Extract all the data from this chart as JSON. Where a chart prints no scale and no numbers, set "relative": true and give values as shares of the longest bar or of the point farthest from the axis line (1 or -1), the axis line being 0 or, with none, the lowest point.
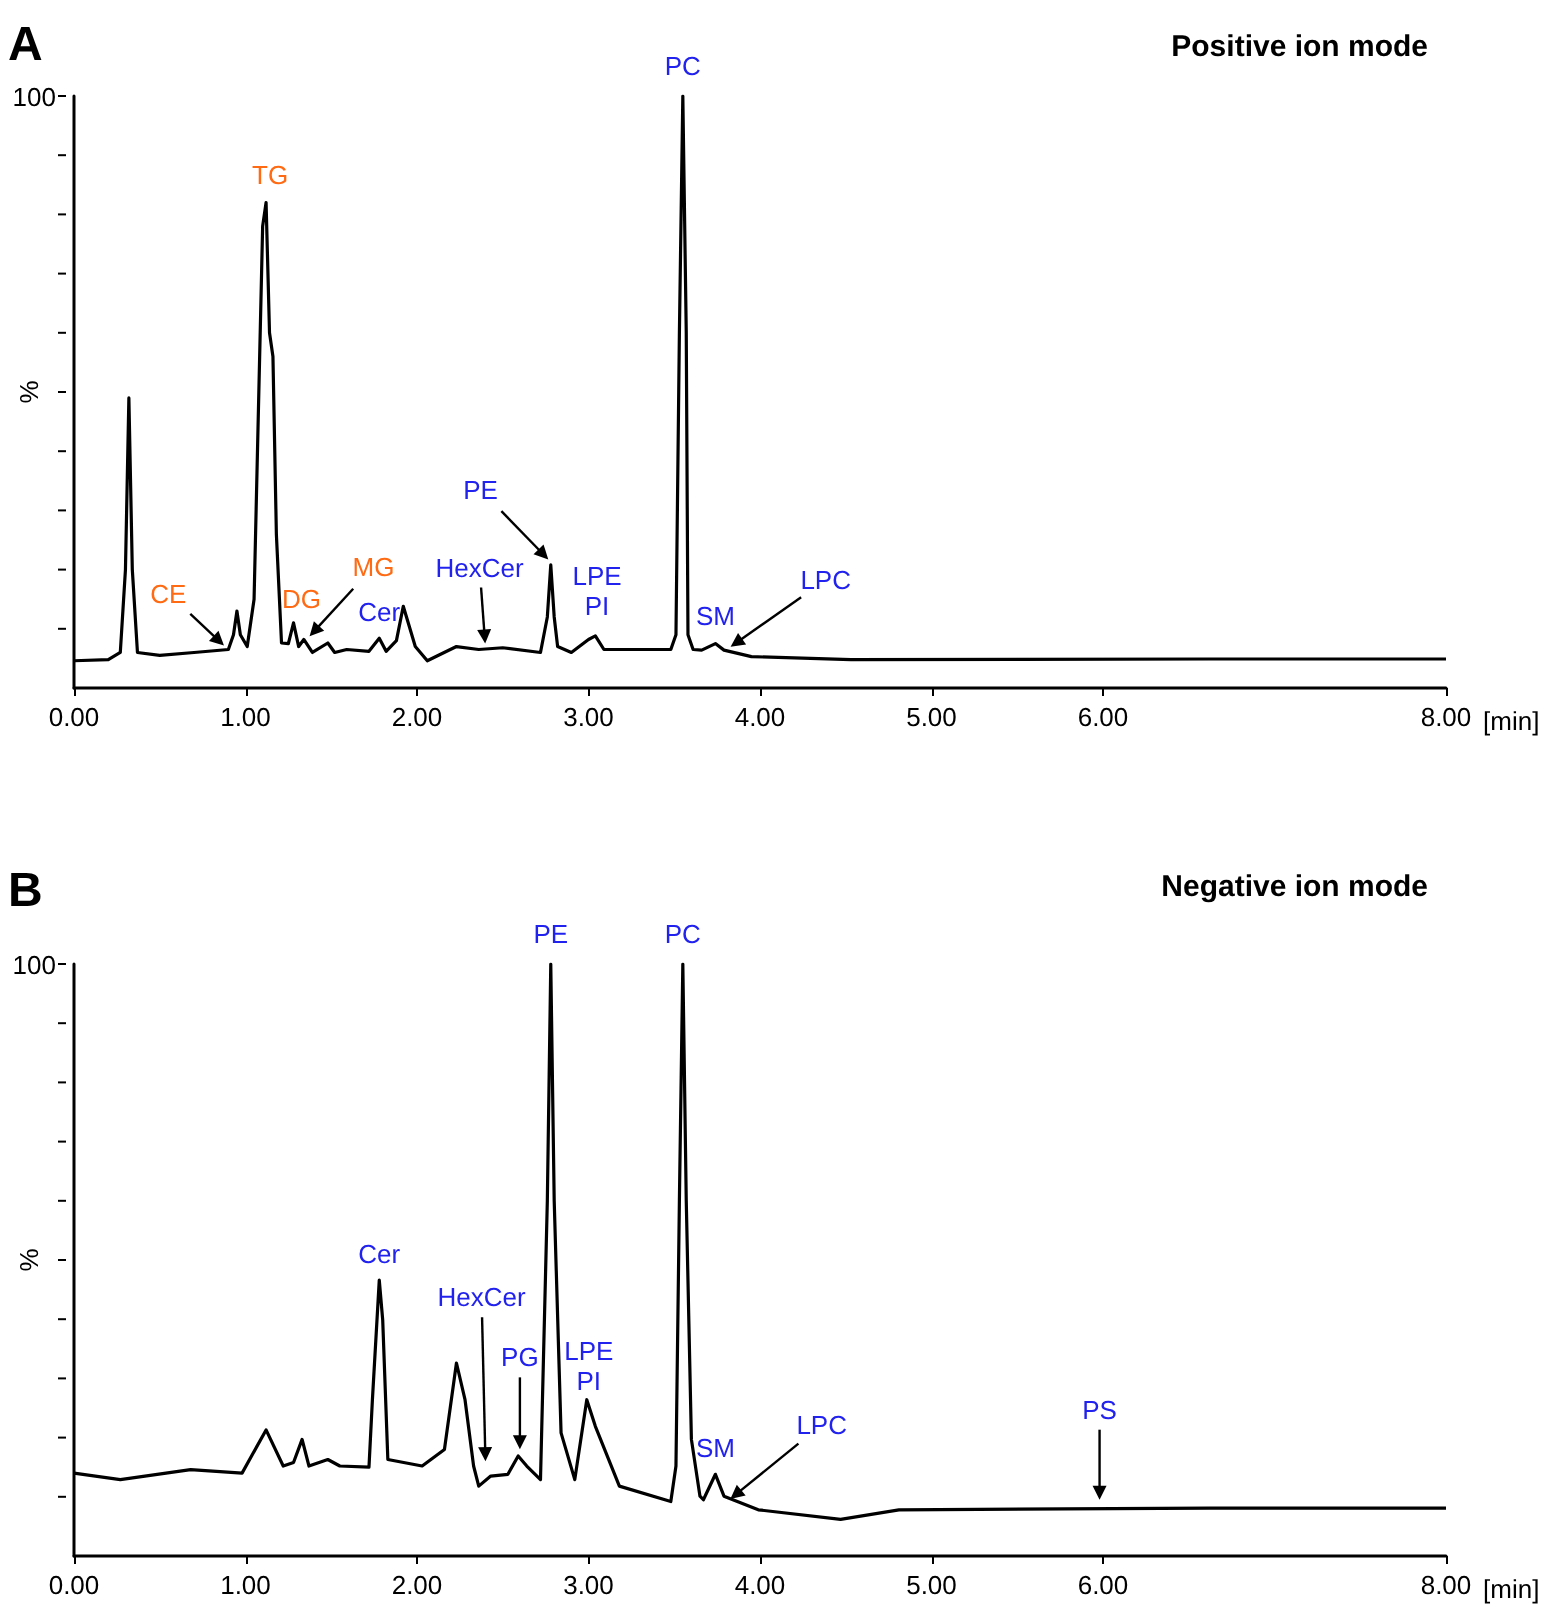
{
  "chart_data": [
    {
      "type": "line",
      "title": "Positive ion mode",
      "xlabel": "[min]",
      "ylabel": "%",
      "color": "#000000",
      "marker": "none",
      "relative": true,
      "x": [
        0,
        0.2,
        0.27,
        0.3,
        0.32,
        0.34,
        0.37,
        0.5,
        0.7,
        0.9,
        0.93,
        0.95,
        0.97,
        1.01,
        1.05,
        1.1,
        1.12,
        1.14,
        1.16,
        1.18,
        1.21,
        1.25,
        1.28,
        1.31,
        1.34,
        1.39,
        1.48,
        1.52,
        1.59,
        1.72,
        1.78,
        1.82,
        1.88,
        1.92,
        1.99,
        2.06,
        2.23,
        2.36,
        2.5,
        2.72,
        2.76,
        2.78,
        2.8,
        2.82,
        2.9,
        3.0,
        3.04,
        3.09,
        3.48,
        3.51,
        3.53,
        3.55,
        3.57,
        3.58,
        3.61,
        3.66,
        3.74,
        3.79,
        3.95,
        4.53,
        6.62,
        8.0
      ],
      "values": [
        0.046,
        0.048,
        0.06,
        0.2,
        0.49,
        0.2,
        0.06,
        0.055,
        0.06,
        0.065,
        0.09,
        0.13,
        0.09,
        0.07,
        0.15,
        0.78,
        0.82,
        0.6,
        0.56,
        0.26,
        0.076,
        0.075,
        0.11,
        0.07,
        0.082,
        0.06,
        0.076,
        0.06,
        0.065,
        0.062,
        0.084,
        0.062,
        0.08,
        0.138,
        0.07,
        0.046,
        0.07,
        0.065,
        0.068,
        0.06,
        0.12,
        0.208,
        0.12,
        0.07,
        0.06,
        0.082,
        0.088,
        0.065,
        0.065,
        0.09,
        0.6,
        1,
        0.6,
        0.09,
        0.065,
        0.064,
        0.075,
        0.064,
        0.053,
        0.048,
        0.049,
        0.049
      ],
      "xlim": [
        0,
        8
      ],
      "xticks": [
        {
          "value": 0,
          "label": "0.00"
        },
        {
          "value": 1,
          "label": "1.00"
        },
        {
          "value": 2,
          "label": "2.00"
        },
        {
          "value": 3,
          "label": "3.00"
        },
        {
          "value": 4,
          "label": "4.00"
        },
        {
          "value": 5,
          "label": "5.00"
        },
        {
          "value": 6,
          "label": "6.00"
        },
        {
          "value": 8,
          "label": "8.00"
        }
      ],
      "annotations": [
        "A",
        "100",
        {
          "text": "CE",
          "x": 0.9,
          "y": 0.065
        },
        {
          "text": "TG",
          "x": 1.12,
          "y": 0.82
        },
        {
          "text": "DG",
          "x": 1.28,
          "y": 0.11
        },
        {
          "text": "MG",
          "x": 1.35,
          "y": 0.08
        },
        {
          "text": "Cer",
          "x": 1.78,
          "y": 0.084
        },
        {
          "text": "HexCer",
          "x": 2.4,
          "y": 0.065
        },
        {
          "text": "PE",
          "x": 2.79,
          "y": 0.21
        },
        {
          "text": "LPE\nPI",
          "x": 3.05,
          "y": 0.09
        },
        {
          "text": "PC",
          "x": 3.55,
          "y": 1
        },
        {
          "text": "SM",
          "x": 3.74,
          "y": 0.075
        },
        {
          "text": "LPC",
          "x": 3.8,
          "y": 0.064
        }
      ]
    },
    {
      "type": "line",
      "title": "Negative ion mode",
      "xlabel": "[min]",
      "ylabel": "%",
      "color": "#000000",
      "marker": "none",
      "relative": true,
      "x": [
        0,
        0.27,
        0.68,
        0.98,
        1.12,
        1.22,
        1.28,
        1.33,
        1.37,
        1.48,
        1.55,
        1.72,
        1.74,
        1.78,
        1.8,
        1.83,
        2.03,
        2.16,
        2.23,
        2.28,
        2.33,
        2.36,
        2.43,
        2.53,
        2.59,
        2.64,
        2.72,
        2.76,
        2.78,
        2.8,
        2.84,
        2.92,
        2.99,
        3.04,
        3.18,
        3.48,
        3.51,
        3.53,
        3.55,
        3.57,
        3.6,
        3.65,
        3.67,
        3.74,
        3.79,
        3.99,
        4.47,
        4.81,
        6.62,
        8.0
      ],
      "values": [
        0.14,
        0.129,
        0.146,
        0.14,
        0.213,
        0.152,
        0.158,
        0.197,
        0.152,
        0.163,
        0.152,
        0.15,
        0.264,
        0.466,
        0.399,
        0.163,
        0.152,
        0.18,
        0.326,
        0.264,
        0.152,
        0.118,
        0.135,
        0.138,
        0.169,
        0.152,
        0.129,
        0.6,
        1,
        0.6,
        0.208,
        0.129,
        0.264,
        0.219,
        0.118,
        0.092,
        0.152,
        0.6,
        1,
        0.6,
        0.197,
        0.101,
        0.095,
        0.138,
        0.101,
        0.078,
        0.062,
        0.078,
        0.081,
        0.081
      ],
      "xlim": [
        0,
        8
      ],
      "xticks": [
        {
          "value": 0,
          "label": "0.00"
        },
        {
          "value": 1,
          "label": "1.00"
        },
        {
          "value": 2,
          "label": "2.00"
        },
        {
          "value": 3,
          "label": "3.00"
        },
        {
          "value": 4,
          "label": "4.00"
        },
        {
          "value": 5,
          "label": "5.00"
        },
        {
          "value": 6,
          "label": "6.00"
        },
        {
          "value": 8,
          "label": "8.00"
        }
      ],
      "annotations": [
        "B",
        "100",
        {
          "text": "Cer",
          "x": 1.78,
          "y": 0.466
        },
        {
          "text": "HexCer",
          "x": 2.4,
          "y": 0.15
        },
        {
          "text": "PG",
          "x": 2.6,
          "y": 0.17
        },
        {
          "text": "PE",
          "x": 2.78,
          "y": 1
        },
        {
          "text": "LPE\nPI",
          "x": 2.99,
          "y": 0.264
        },
        {
          "text": "PC",
          "x": 3.55,
          "y": 1
        },
        {
          "text": "SM",
          "x": 3.74,
          "y": 0.138
        },
        {
          "text": "LPC",
          "x": 3.8,
          "y": 0.09
        },
        {
          "text": "PS",
          "x": 5.98,
          "y": 0.085
        }
      ]
    }
  ]
}
